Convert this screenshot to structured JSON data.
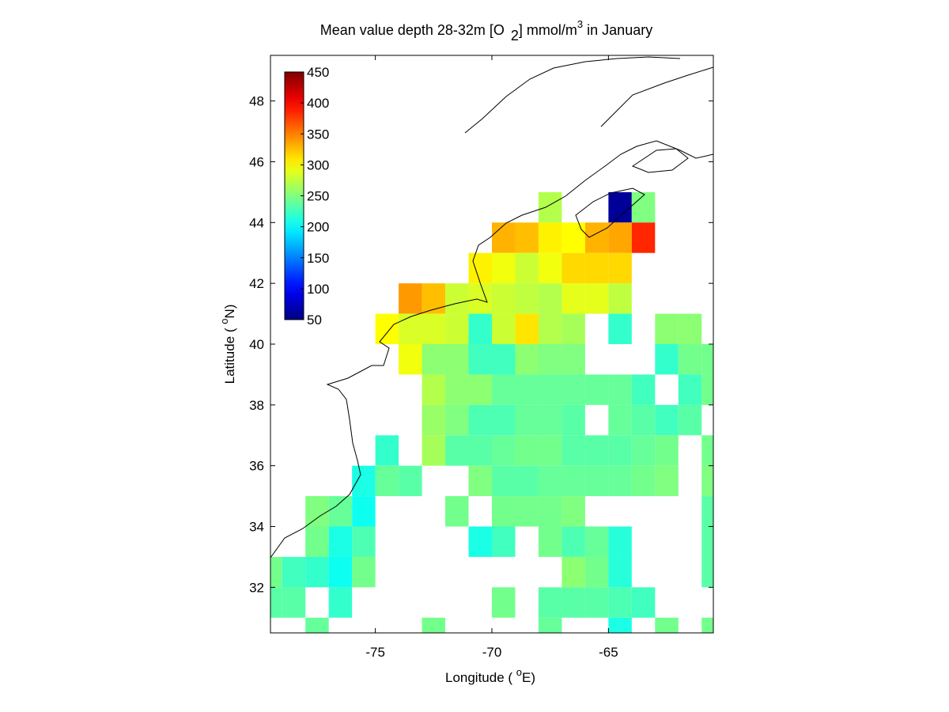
{
  "chart_data": {
    "type": "heatmap",
    "title": [
      "Mean value depth 28-32m [O",
      "2",
      "] mmol/m",
      "3",
      " in January"
    ],
    "x_label": [
      "Longitude ( ",
      "o",
      "E)"
    ],
    "y_label": [
      "Latitude ( ",
      "o",
      "N)"
    ],
    "xlim": [
      -79.5,
      -60.5
    ],
    "ylim": [
      30.5,
      49.5
    ],
    "xticks": [
      -75,
      -70,
      -65
    ],
    "yticks": [
      32,
      34,
      36,
      38,
      40,
      42,
      44,
      46,
      48
    ],
    "colormap": "jet",
    "clim": [
      50,
      450
    ],
    "colorbar_ticks": [
      50,
      100,
      150,
      200,
      250,
      300,
      350,
      400,
      450
    ],
    "cell_size": 1,
    "cells": [
      [
        -68,
        44,
        270
      ],
      [
        -65,
        44,
        60
      ],
      [
        -64,
        44,
        250
      ],
      [
        -70,
        43,
        330
      ],
      [
        -69,
        43,
        325
      ],
      [
        -68,
        43,
        305
      ],
      [
        -67,
        43,
        300
      ],
      [
        -66,
        43,
        330
      ],
      [
        -65,
        43,
        335
      ],
      [
        -64,
        43,
        385
      ],
      [
        -71,
        42,
        305
      ],
      [
        -70,
        42,
        295
      ],
      [
        -69,
        42,
        280
      ],
      [
        -68,
        42,
        295
      ],
      [
        -67,
        42,
        315
      ],
      [
        -66,
        42,
        315
      ],
      [
        -65,
        42,
        315
      ],
      [
        -74,
        41,
        340
      ],
      [
        -73,
        41,
        325
      ],
      [
        -72,
        41,
        280
      ],
      [
        -71,
        41,
        285
      ],
      [
        -70,
        41,
        280
      ],
      [
        -69,
        41,
        275
      ],
      [
        -68,
        41,
        270
      ],
      [
        -67,
        41,
        290
      ],
      [
        -66,
        41,
        290
      ],
      [
        -65,
        41,
        275
      ],
      [
        -75,
        40,
        300
      ],
      [
        -74,
        40,
        285
      ],
      [
        -73,
        40,
        285
      ],
      [
        -72,
        40,
        280
      ],
      [
        -71,
        40,
        220
      ],
      [
        -70,
        40,
        280
      ],
      [
        -69,
        40,
        310
      ],
      [
        -68,
        40,
        270
      ],
      [
        -67,
        40,
        265
      ],
      [
        -65,
        40,
        220
      ],
      [
        -63,
        40,
        255
      ],
      [
        -62,
        40,
        255
      ],
      [
        -74,
        39,
        295
      ],
      [
        -73,
        39,
        255
      ],
      [
        -72,
        39,
        255
      ],
      [
        -71,
        39,
        225
      ],
      [
        -70,
        39,
        225
      ],
      [
        -69,
        39,
        255
      ],
      [
        -68,
        39,
        250
      ],
      [
        -67,
        39,
        250
      ],
      [
        -63,
        39,
        220
      ],
      [
        -62,
        39,
        245
      ],
      [
        -61,
        39,
        245
      ],
      [
        -73,
        38,
        270
      ],
      [
        -72,
        38,
        255
      ],
      [
        -71,
        38,
        255
      ],
      [
        -70,
        38,
        240
      ],
      [
        -69,
        38,
        240
      ],
      [
        -68,
        38,
        240
      ],
      [
        -67,
        38,
        240
      ],
      [
        -66,
        38,
        240
      ],
      [
        -65,
        38,
        240
      ],
      [
        -64,
        38,
        225
      ],
      [
        -62,
        38,
        225
      ],
      [
        -61,
        38,
        245
      ],
      [
        -73,
        37,
        260
      ],
      [
        -72,
        37,
        250
      ],
      [
        -71,
        37,
        230
      ],
      [
        -70,
        37,
        230
      ],
      [
        -69,
        37,
        240
      ],
      [
        -68,
        37,
        240
      ],
      [
        -67,
        37,
        235
      ],
      [
        -65,
        37,
        240
      ],
      [
        -64,
        37,
        235
      ],
      [
        -63,
        37,
        225
      ],
      [
        -62,
        37,
        235
      ],
      [
        -75,
        36,
        220
      ],
      [
        -73,
        36,
        265
      ],
      [
        -72,
        36,
        235
      ],
      [
        -71,
        36,
        235
      ],
      [
        -70,
        36,
        240
      ],
      [
        -69,
        36,
        245
      ],
      [
        -68,
        36,
        245
      ],
      [
        -67,
        36,
        235
      ],
      [
        -66,
        36,
        235
      ],
      [
        -65,
        36,
        235
      ],
      [
        -64,
        36,
        240
      ],
      [
        -63,
        36,
        245
      ],
      [
        -61,
        36,
        245
      ],
      [
        -76,
        35,
        210
      ],
      [
        -75,
        35,
        240
      ],
      [
        -74,
        35,
        235
      ],
      [
        -71,
        35,
        250
      ],
      [
        -70,
        35,
        235
      ],
      [
        -69,
        35,
        235
      ],
      [
        -68,
        35,
        240
      ],
      [
        -67,
        35,
        240
      ],
      [
        -66,
        35,
        240
      ],
      [
        -65,
        35,
        240
      ],
      [
        -64,
        35,
        245
      ],
      [
        -63,
        35,
        250
      ],
      [
        -61,
        35,
        250
      ],
      [
        -78,
        34,
        250
      ],
      [
        -77,
        34,
        240
      ],
      [
        -76,
        34,
        205
      ],
      [
        -72,
        34,
        245
      ],
      [
        -70,
        34,
        245
      ],
      [
        -69,
        34,
        245
      ],
      [
        -68,
        34,
        245
      ],
      [
        -67,
        34,
        250
      ],
      [
        -61,
        34,
        235
      ],
      [
        -78,
        33,
        245
      ],
      [
        -77,
        33,
        210
      ],
      [
        -76,
        33,
        230
      ],
      [
        -71,
        33,
        210
      ],
      [
        -70,
        33,
        225
      ],
      [
        -68,
        33,
        245
      ],
      [
        -67,
        33,
        230
      ],
      [
        -66,
        33,
        240
      ],
      [
        -65,
        33,
        215
      ],
      [
        -61,
        33,
        235
      ],
      [
        -80,
        32,
        245
      ],
      [
        -79,
        32,
        225
      ],
      [
        -78,
        32,
        220
      ],
      [
        -77,
        32,
        205
      ],
      [
        -76,
        32,
        245
      ],
      [
        -67,
        32,
        255
      ],
      [
        -66,
        32,
        245
      ],
      [
        -65,
        32,
        215
      ],
      [
        -61,
        32,
        235
      ],
      [
        -80,
        31,
        235
      ],
      [
        -79,
        31,
        235
      ],
      [
        -77,
        31,
        220
      ],
      [
        -70,
        31,
        245
      ],
      [
        -68,
        31,
        235
      ],
      [
        -67,
        31,
        235
      ],
      [
        -66,
        31,
        235
      ],
      [
        -65,
        31,
        230
      ],
      [
        -64,
        31,
        225
      ],
      [
        -78,
        30,
        240
      ],
      [
        -73,
        30,
        245
      ],
      [
        -68,
        30,
        240
      ],
      [
        -65,
        30,
        210
      ],
      [
        -63,
        30,
        245
      ],
      [
        -61,
        30,
        245
      ]
    ]
  }
}
